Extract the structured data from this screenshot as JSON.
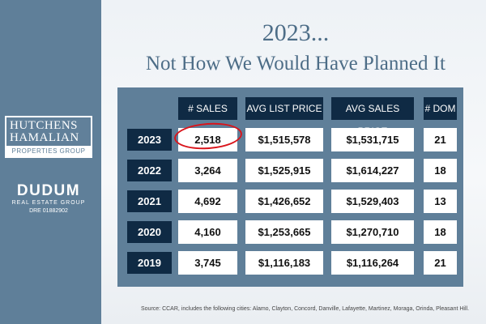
{
  "logos": {
    "brand1_line1": "HUTCHENS",
    "brand1_line2": "HAMALIAN",
    "brand1_band": "PROPERTIES GROUP",
    "brand2_name": "DUDUM",
    "brand2_sub": "REAL ESTATE GROUP",
    "brand2_dre": "DRE 01882902"
  },
  "title": {
    "line1": "2023...",
    "line2": "Not How We Would Have Planned It"
  },
  "table": {
    "headers": [
      "# SALES",
      "AVG LIST PRICE",
      "AVG SALES PRICE",
      "# DOM"
    ],
    "rows": [
      {
        "year": "2023",
        "sales": "2,518",
        "avg_list": "$1,515,578",
        "avg_sales": "$1,531,715",
        "dom": "21"
      },
      {
        "year": "2022",
        "sales": "3,264",
        "avg_list": "$1,525,915",
        "avg_sales": "$1,614,227",
        "dom": "18"
      },
      {
        "year": "2021",
        "sales": "4,692",
        "avg_list": "$1,426,652",
        "avg_sales": "$1,529,403",
        "dom": "13"
      },
      {
        "year": "2020",
        "sales": "4,160",
        "avg_list": "$1,253,665",
        "avg_sales": "$1,270,710",
        "dom": "18"
      },
      {
        "year": "2019",
        "sales": "3,745",
        "avg_list": "$1,116,183",
        "avg_sales": "$1,116,264",
        "dom": "21"
      }
    ],
    "highlight_color": "#d9141b"
  },
  "source": "Source:  CCAR, includes the following cities: Alamo, Clayton, Concord, Danville, Lafayette, Martinez, Moraga, Orinda, Pleasant Hill."
}
